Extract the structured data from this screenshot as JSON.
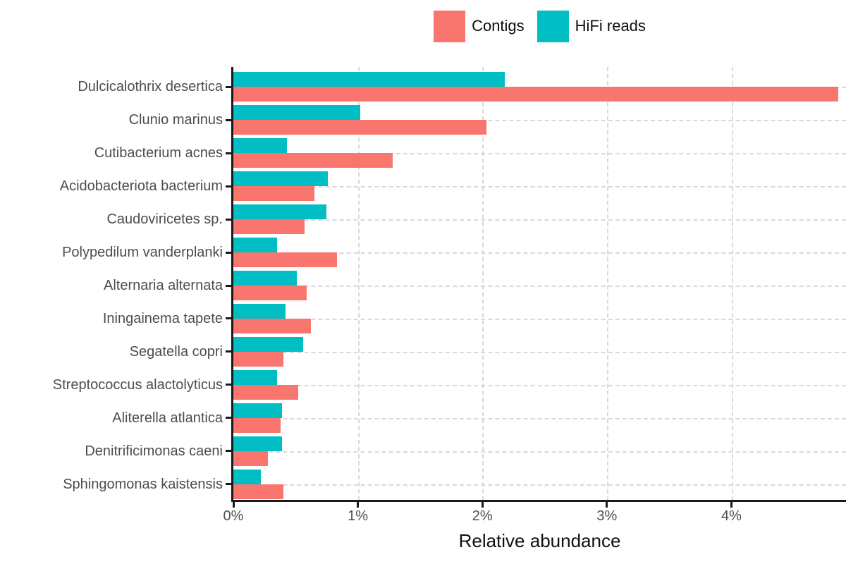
{
  "chart_data": {
    "type": "bar",
    "orientation": "horizontal",
    "title": "",
    "xlabel": "Relative abundance",
    "ylabel": "",
    "unit": "%",
    "xlim": [
      0,
      4.92
    ],
    "x_tick_labels": [
      "0%",
      "1%",
      "2%",
      "3%",
      "4%"
    ],
    "x_tick_values": [
      0,
      1,
      2,
      3,
      4
    ],
    "grid": "dashed-both-axes",
    "legend_position": "top-center",
    "bar_order_top_to_bottom_within_group": [
      "HiFi reads",
      "Contigs"
    ],
    "categories": [
      "Dulcicalothrix desertica",
      "Clunio marinus",
      "Cutibacterium acnes",
      "Acidobacteriota bacterium",
      "Caudoviricetes sp.",
      "Polypedilum vanderplanki",
      "Alternaria alternata",
      "Iningainema tapete",
      "Segatella copri",
      "Streptococcus alactolyticus",
      "Aliterella atlantica",
      "Denitrificimonas caeni",
      "Sphingomonas kaistensis"
    ],
    "series": [
      {
        "name": "Contigs",
        "color": "#F8766D",
        "values": [
          4.86,
          2.03,
          1.28,
          0.65,
          0.57,
          0.83,
          0.59,
          0.62,
          0.4,
          0.52,
          0.38,
          0.28,
          0.4
        ]
      },
      {
        "name": "HiFi reads",
        "color": "#00BEC4",
        "values": [
          2.18,
          1.02,
          0.43,
          0.76,
          0.75,
          0.35,
          0.51,
          0.42,
          0.56,
          0.35,
          0.39,
          0.39,
          0.22
        ]
      }
    ]
  },
  "style_colors": {
    "axis": "#1a1a1a",
    "gridline": "#d9d9d9",
    "tick_label": "#4d4d4d",
    "title_text": "#111111",
    "background": "#ffffff"
  }
}
